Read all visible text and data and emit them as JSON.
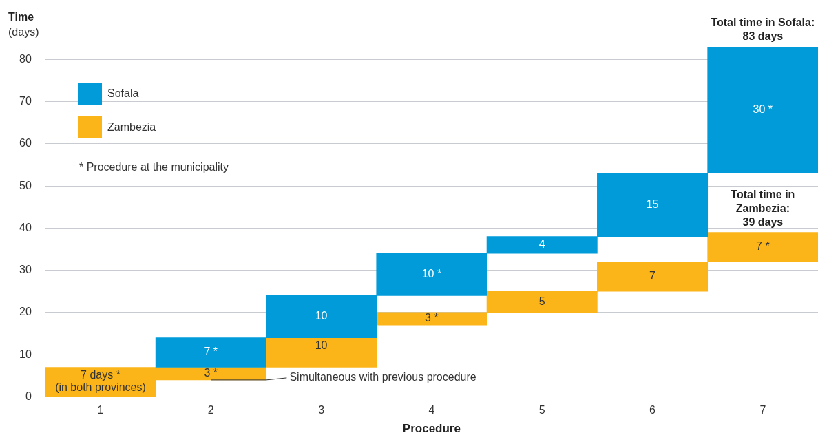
{
  "chart_data": {
    "type": "bar",
    "ylabel": "Time (days)",
    "xlabel": "Procedure",
    "categories": [
      "1",
      "2",
      "3",
      "4",
      "5",
      "6",
      "7"
    ],
    "series": [
      {
        "name": "Sofala",
        "color": "#009bd8",
        "base": [
          null,
          7,
          14,
          24,
          34,
          38,
          53
        ],
        "values": [
          null,
          7,
          10,
          10,
          4,
          15,
          30
        ],
        "value_labels": [
          null,
          "7 *",
          "10",
          "10 *",
          "4",
          "15",
          "30 *"
        ]
      },
      {
        "name": "Zambezia",
        "color": "#fbb518",
        "base": [
          0,
          4,
          7,
          17,
          20,
          25,
          32
        ],
        "values": [
          7,
          3,
          10,
          3,
          5,
          7,
          7
        ],
        "value_labels": [
          "7 days *\n(in both provinces)",
          "3 *",
          "10",
          "3 *",
          "5",
          "7",
          "7 *"
        ]
      }
    ],
    "ylim": [
      0,
      83
    ],
    "yticks": [
      0,
      10,
      20,
      30,
      40,
      50,
      60,
      70,
      80
    ],
    "grid": "y",
    "legend": "top left",
    "annotations": [
      "* Procedure at the municipality",
      {
        "text": "Simultaneous with previous procedure",
        "x": "2",
        "y": 4
      },
      {
        "text": "Total time in Sofala:\n83 days",
        "x": "7",
        "y": 83
      },
      {
        "text": "Total time in\nZambezia:\n39 days",
        "x": "7",
        "y": 39
      }
    ]
  }
}
